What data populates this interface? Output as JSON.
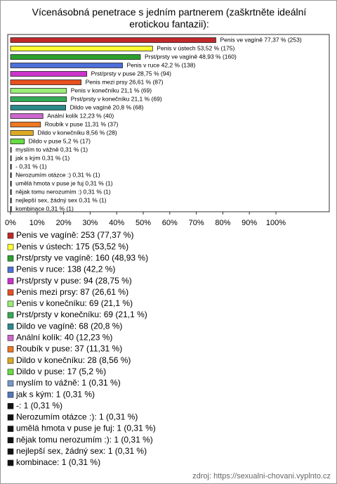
{
  "chart_data": {
    "type": "bar",
    "orientation": "horizontal",
    "title": "Vícenásobná penetrace s jedním partnerem (zaškrtněte ideální erotickou fantazii):",
    "categories": [
      "Penis ve vagíně",
      "Penis v ústech",
      "Prst/prsty ve vagíně",
      "Penis v ruce",
      "Prst/prsty v puse",
      "Penis mezi prsy",
      "Penis v konečníku",
      "Prst/prsty v konečníku",
      "Dildo ve vagíně",
      "Anální kolík",
      "Roubík v puse",
      "Dildo v konečníku",
      "Dildo v puse",
      "myslím to vážně",
      "jak s kým",
      "-",
      "Nerozumím otázce :)",
      "umělá hmota v puse je fuj",
      "nějak tomu nerozumím :)",
      "nejlepší sex, žádný sex",
      "kombinace"
    ],
    "values": [
      77.37,
      53.52,
      48.93,
      42.2,
      28.75,
      26.61,
      21.1,
      21.1,
      20.8,
      12.23,
      11.31,
      8.56,
      5.2,
      0.31,
      0.31,
      0.31,
      0.31,
      0.31,
      0.31,
      0.31,
      0.31
    ],
    "value_labels": [
      "Penis ve vagíně 77,37 % (253)",
      "Penis v ústech 53,52 % (175)",
      "Prst/prsty ve vagíně 48,93 % (160)",
      "Penis v ruce 42,2 % (138)",
      "Prst/prsty v puse 28,75 % (94)",
      "Penis mezi prsy 26,61 % (87)",
      "Penis v konečníku 21,1 % (69)",
      "Prst/prsty v konečníku 21,1 % (69)",
      "Dildo ve vagíně 20,8 % (68)",
      "Anální kolík 12,23 % (40)",
      "Roubík v puse 11,31 % (37)",
      "Dildo v konečníku 8,56 % (28)",
      "Dildo v puse 5,2 % (17)",
      "myslím to vážně 0,31 % (1)",
      "jak s kým 0,31 % (1)",
      "- 0,31 % (1)",
      "Nerozumím otázce :) 0,31 % (1)",
      "umělá hmota v puse je fuj 0,31 % (1)",
      "nějak tomu nerozumím :) 0,31 % (1)",
      "nejlepší sex, žádný sex 0,31 % (1)",
      "kombinace 0,31 % (1)"
    ],
    "legend": [
      "Penis ve vagíně: 253 (77,37 %)",
      "Penis v ústech: 175 (53,52 %)",
      "Prst/prsty ve vagíně: 160 (48,93 %)",
      "Penis v ruce: 138 (42,2 %)",
      "Prst/prsty v puse: 94 (28,75 %)",
      "Penis mezi prsy: 87 (26,61 %)",
      "Penis v konečníku: 69 (21,1 %)",
      "Prst/prsty v konečníku: 69 (21,1 %)",
      "Dildo ve vagíně: 68 (20,8 %)",
      "Anální kolík: 40 (12,23 %)",
      "Roubík v puse: 37 (11,31 %)",
      "Dildo v konečníku: 28 (8,56 %)",
      "Dildo v puse: 17 (5,2 %)",
      "myslím to vážně: 1 (0,31 %)",
      "jak s kým: 1 (0,31 %)",
      "-: 1 (0,31 %)",
      "Nerozumím otázce :): 1 (0,31 %)",
      "umělá hmota v puse je fuj: 1 (0,31 %)",
      "nějak tomu nerozumím :): 1 (0,31 %)",
      "nejlepší sex, žádný sex: 1 (0,31 %)",
      "kombinace: 1 (0,31 %)"
    ],
    "colors": [
      "#c0282a",
      "#ffff33",
      "#2ca02c",
      "#4d6fd9",
      "#cc33cc",
      "#e8501e",
      "#99ee77",
      "#33aa55",
      "#2a8a8a",
      "#cc66cc",
      "#ee7722",
      "#ddaa22",
      "#66dd44",
      "#7799cc",
      "#5577bb",
      "#111111",
      "#111111",
      "#111111",
      "#111111",
      "#111111",
      "#111111"
    ],
    "xlim": [
      0,
      120
    ],
    "xticks": [
      {
        "value": 0,
        "label": "0%"
      },
      {
        "value": 10,
        "label": "10%"
      },
      {
        "value": 20,
        "label": "20%"
      },
      {
        "value": 30,
        "label": "30%"
      },
      {
        "value": 40,
        "label": "40%"
      },
      {
        "value": 50,
        "label": "50%"
      },
      {
        "value": 60,
        "label": "60%"
      },
      {
        "value": 70,
        "label": "70%"
      },
      {
        "value": 80,
        "label": "80%"
      },
      {
        "value": 90,
        "label": "90%"
      },
      {
        "value": 100,
        "label": "100%"
      }
    ],
    "source": "zdroj: https://sexualni-chovani.vyplnto.cz"
  }
}
